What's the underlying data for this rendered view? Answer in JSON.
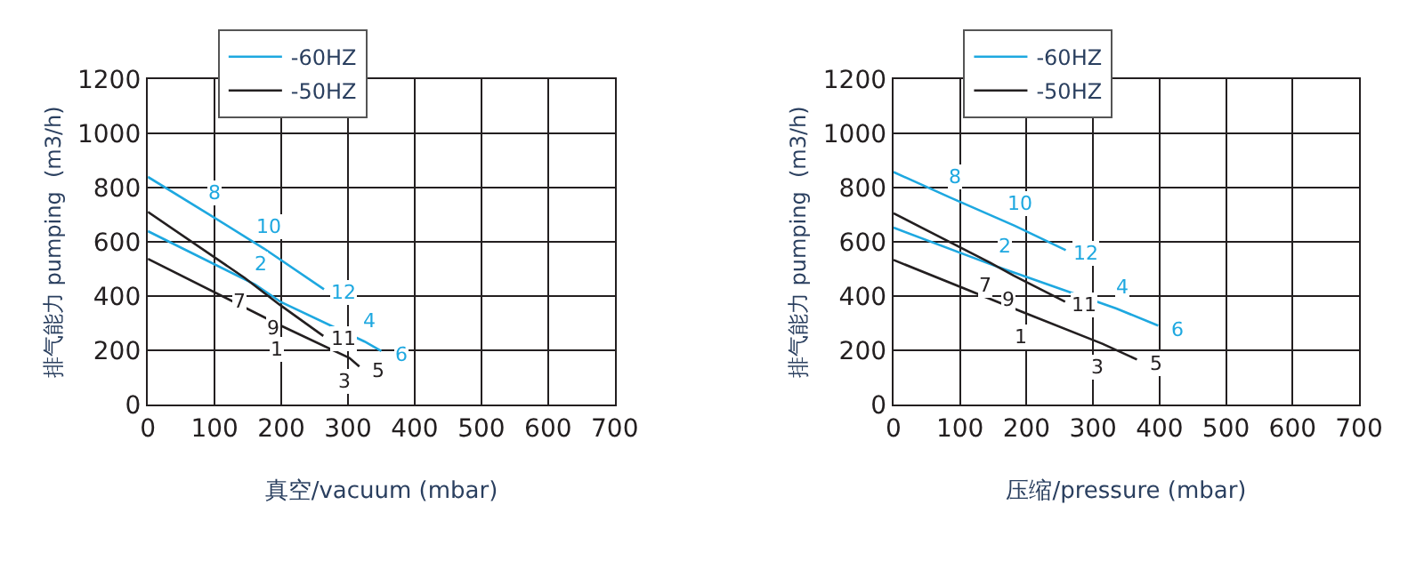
{
  "chart_data": [
    {
      "type": "line",
      "xlabel": "真空/vacuum (mbar)",
      "ylabel": "排气能力 pumping  (m3/h)",
      "xlim": [
        0,
        700
      ],
      "ylim": [
        0,
        1200
      ],
      "xticks": [
        0,
        100,
        200,
        300,
        400,
        500,
        600,
        700
      ],
      "yticks": [
        0,
        200,
        400,
        600,
        800,
        1000,
        1200
      ],
      "grid": true,
      "legend": "top left",
      "series": [
        {
          "name": "-60HZ",
          "color": "#1ea8e0",
          "x": [
            0,
            91,
            174,
            264
          ],
          "values": [
            840,
            703,
            576,
            426
          ]
        },
        {
          "color": "#1ea8e0",
          "x": [
            0,
            161,
            200,
            325,
            350
          ],
          "values": [
            640,
            443,
            378,
            233,
            198
          ]
        },
        {
          "name": "-50HZ",
          "color": "#231f20",
          "x": [
            0,
            145,
            197,
            263
          ],
          "values": [
            711,
            468,
            370,
            254
          ]
        },
        {
          "color": "#231f20",
          "x": [
            0,
            200,
            302,
            317
          ],
          "values": [
            538,
            291,
            173,
            141
          ]
        }
      ],
      "annotations": [
        {
          "text": "8",
          "x": 91,
          "y": 703
        },
        {
          "text": "10",
          "x": 174,
          "y": 576
        },
        {
          "text": "12",
          "x": 264,
          "y": 426
        },
        {
          "text": "2",
          "x": 161,
          "y": 443
        },
        {
          "text": "4",
          "x": 325,
          "y": 233
        },
        {
          "text": "6",
          "x": 350,
          "y": 198
        },
        {
          "text": "7",
          "x": 145,
          "y": 468
        },
        {
          "text": "9",
          "x": 197,
          "y": 370
        },
        {
          "text": "11",
          "x": 263,
          "y": 254
        },
        {
          "text": "1",
          "x": 200,
          "y": 291
        },
        {
          "text": "3",
          "x": 302,
          "y": 173
        },
        {
          "text": "5",
          "x": 317,
          "y": 141
        }
      ]
    },
    {
      "type": "line",
      "xlabel": "压缩/pressure (mbar)",
      "ylabel": "排气能力 pumping  (m3/h)",
      "xlim": [
        0,
        700
      ],
      "ylim": [
        0,
        1200
      ],
      "xticks": [
        0,
        100,
        200,
        300,
        400,
        500,
        600,
        700
      ],
      "yticks": [
        0,
        200,
        400,
        600,
        800,
        1000,
        1200
      ],
      "grid": true,
      "legend": "top left",
      "series": [
        {
          "name": "-60HZ",
          "color": "#1ea8e0",
          "x": [
            0,
            85,
            182,
            259
          ],
          "values": [
            858,
            764,
            660,
            570
          ]
        },
        {
          "color": "#1ea8e0",
          "x": [
            0,
            158,
            335,
            398
          ],
          "values": [
            653,
            507,
            355,
            292
          ]
        },
        {
          "name": "-50HZ",
          "color": "#231f20",
          "x": [
            0,
            145,
            181,
            258
          ],
          "values": [
            706,
            524,
            476,
            380
          ]
        },
        {
          "color": "#231f20",
          "x": [
            0,
            200,
            314,
            366
          ],
          "values": [
            534,
            336,
            225,
            167
          ]
        }
      ],
      "annotations": [
        {
          "text": "8",
          "x": 85,
          "y": 764
        },
        {
          "text": "10",
          "x": 182,
          "y": 660
        },
        {
          "text": "12",
          "x": 259,
          "y": 570
        },
        {
          "text": "2",
          "x": 158,
          "y": 507
        },
        {
          "text": "4",
          "x": 335,
          "y": 355
        },
        {
          "text": "6",
          "x": 398,
          "y": 292
        },
        {
          "text": "7",
          "x": 145,
          "y": 524
        },
        {
          "text": "9",
          "x": 181,
          "y": 476
        },
        {
          "text": "11",
          "x": 258,
          "y": 380
        },
        {
          "text": "1",
          "x": 200,
          "y": 336
        },
        {
          "text": "3",
          "x": 314,
          "y": 225
        },
        {
          "text": "5",
          "x": 366,
          "y": 167
        }
      ]
    }
  ]
}
